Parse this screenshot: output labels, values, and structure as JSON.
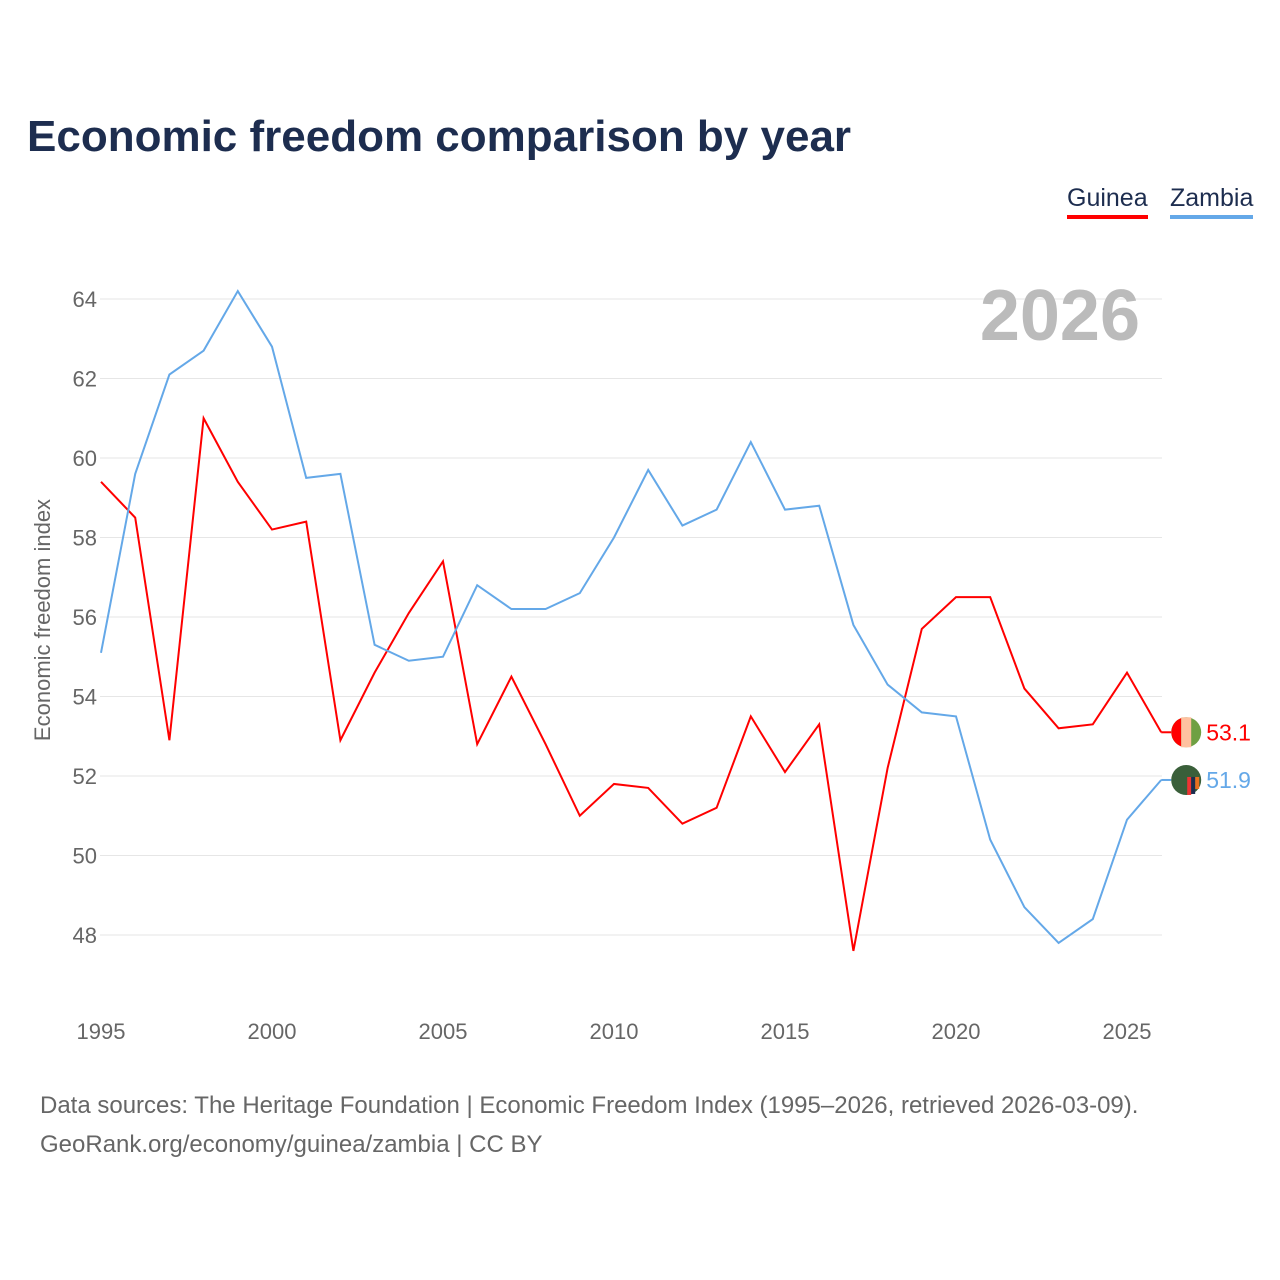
{
  "chart_data": {
    "type": "line",
    "title": "Economic freedom comparison by year",
    "ylabel": "Economic freedom index",
    "xlabel": "",
    "year_label": "2026",
    "ylim": [
      46.5,
      65
    ],
    "xlim": [
      1995,
      2026
    ],
    "yticks": [
      48,
      50,
      52,
      54,
      56,
      58,
      60,
      62,
      64
    ],
    "xticks": [
      1995,
      2000,
      2005,
      2010,
      2015,
      2020,
      2025
    ],
    "grid": true,
    "legend_position": "top-right",
    "x": [
      1995,
      1996,
      1997,
      1998,
      1999,
      2000,
      2001,
      2002,
      2003,
      2004,
      2005,
      2006,
      2007,
      2008,
      2009,
      2010,
      2011,
      2012,
      2013,
      2014,
      2015,
      2016,
      2017,
      2018,
      2019,
      2020,
      2021,
      2022,
      2023,
      2024,
      2025,
      2026
    ],
    "series": [
      {
        "name": "Guinea",
        "color": "#ff0000",
        "end_label": "53.1",
        "values": [
          59.4,
          58.5,
          52.9,
          61.0,
          59.4,
          58.2,
          58.4,
          52.9,
          54.6,
          56.1,
          57.4,
          52.8,
          54.5,
          52.8,
          51.0,
          51.8,
          51.7,
          50.8,
          51.2,
          53.5,
          52.1,
          53.3,
          47.6,
          52.2,
          55.7,
          56.5,
          56.5,
          54.2,
          53.2,
          53.3,
          54.6,
          53.1
        ]
      },
      {
        "name": "Zambia",
        "color": "#64a8e8",
        "end_label": "51.9",
        "values": [
          55.1,
          59.6,
          62.1,
          62.7,
          64.2,
          62.8,
          59.5,
          59.6,
          55.3,
          54.9,
          55.0,
          56.8,
          56.2,
          56.2,
          56.6,
          58.0,
          59.7,
          58.3,
          58.7,
          60.4,
          58.7,
          58.8,
          55.8,
          54.3,
          53.6,
          53.5,
          50.4,
          48.7,
          47.8,
          48.4,
          50.9,
          51.9
        ]
      }
    ]
  },
  "footer": {
    "line1": "Data sources: The Heritage Foundation | Economic Freedom Index (1995–2026, retrieved 2026-03-09).",
    "line2": "GeoRank.org/economy/guinea/zambia | CC BY"
  }
}
